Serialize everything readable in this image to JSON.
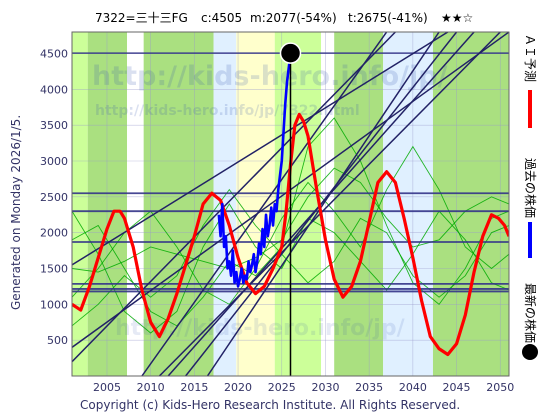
{
  "header": {
    "code_name": "7322=三十三FG",
    "current": "c:4505",
    "max_info": "m:2077(-54%)",
    "target_info": "t:2675(-41%)",
    "stars": "★★☆"
  },
  "side_left": {
    "generated": "Generated on Monday 2026/1/5."
  },
  "legend": [
    {
      "label": "ＡＩ予測",
      "color": "#ff0000",
      "kind": "line"
    },
    {
      "label": "過去の株価",
      "color": "#0000ff",
      "kind": "line"
    },
    {
      "label": "最新の株価",
      "color": "#000000",
      "kind": "dot"
    }
  ],
  "footer": {
    "copyright": "Copyright (c) Kids-Hero Research Institute. All Rights Reserved."
  },
  "watermark": {
    "url1": "http://kids-hero.info/jp/",
    "url2": "http://kids-hero.info/jp/7322.html"
  },
  "chart_data": {
    "type": "line",
    "xlim": [
      2001,
      2051
    ],
    "ylim": [
      0,
      4800
    ],
    "x_ticks": [
      2005,
      2010,
      2015,
      2020,
      2025,
      2030,
      2035,
      2040,
      2045,
      2050
    ],
    "y_ticks": [
      500,
      1000,
      1500,
      2000,
      2500,
      3000,
      3500,
      4000,
      4500
    ],
    "colors": {
      "background_green": "#ccff99",
      "band_dark_green": "#aae080",
      "band_white": "#ffffff",
      "band_light_blue": "#e0f0ff",
      "band_cream": "#ffffcc",
      "grid": "#9999cc",
      "hline": "#333388",
      "trend": "#222266",
      "thin_green": "#00aa00",
      "ai_red": "#ff0000",
      "past_blue": "#0000ff",
      "latest_dot": "#000000",
      "tick_text": "#333366"
    },
    "bands": [
      {
        "from": 2001,
        "to": 2002.8,
        "kind": "background_green"
      },
      {
        "from": 2002.8,
        "to": 2007.3,
        "kind": "band_dark_green"
      },
      {
        "from": 2007.3,
        "to": 2009.2,
        "kind": "band_white"
      },
      {
        "from": 2009.2,
        "to": 2017.2,
        "kind": "band_dark_green"
      },
      {
        "from": 2017.2,
        "to": 2019.8,
        "kind": "band_light_blue"
      },
      {
        "from": 2019.8,
        "to": 2024.2,
        "kind": "band_cream"
      },
      {
        "from": 2024.2,
        "to": 2029.5,
        "kind": "background_green"
      },
      {
        "from": 2029.5,
        "to": 2031.0,
        "kind": "band_white"
      },
      {
        "from": 2031.0,
        "to": 2036.6,
        "kind": "band_dark_green"
      },
      {
        "from": 2036.6,
        "to": 2042.3,
        "kind": "band_light_blue"
      },
      {
        "from": 2042.3,
        "to": 2051,
        "kind": "band_dark_green"
      }
    ],
    "horizontal_lines": [
      4505,
      2550,
      2300,
      1870,
      1285,
      1215,
      1180
    ],
    "trend_lines": [
      {
        "from": [
          2001,
          400
        ],
        "to": [
          2051,
          4800
        ]
      },
      {
        "from": [
          2011,
          0
        ],
        "to": [
          2050,
          4800
        ]
      },
      {
        "from": [
          2012,
          0
        ],
        "to": [
          2047,
          4800
        ]
      },
      {
        "from": [
          2014,
          0
        ],
        "to": [
          2045,
          4800
        ]
      },
      {
        "from": [
          2016.5,
          0
        ],
        "to": [
          2043,
          4800
        ]
      },
      {
        "from": [
          2001,
          1550
        ],
        "to": [
          2044,
          4800
        ]
      },
      {
        "from": [
          2001,
          200
        ],
        "to": [
          2038,
          4800
        ]
      },
      {
        "from": [
          2009,
          0
        ],
        "to": [
          2037,
          4800
        ]
      }
    ],
    "thin_lines": [
      [
        [
          2001,
          1500
        ],
        [
          2004,
          1450
        ],
        [
          2007,
          1600
        ],
        [
          2010,
          1800
        ],
        [
          2013,
          1700
        ],
        [
          2016,
          1600
        ],
        [
          2019,
          1500
        ],
        [
          2022,
          1650
        ],
        [
          2025,
          1900
        ],
        [
          2028,
          2500
        ],
        [
          2031,
          2900
        ],
        [
          2034,
          2700
        ],
        [
          2037,
          2200
        ],
        [
          2040,
          1800
        ],
        [
          2043,
          1900
        ],
        [
          2046,
          2300
        ],
        [
          2049,
          2500
        ],
        [
          2051,
          2400
        ]
      ],
      [
        [
          2001,
          1900
        ],
        [
          2004,
          2100
        ],
        [
          2007,
          1500
        ],
        [
          2010,
          900
        ],
        [
          2013,
          700
        ],
        [
          2016,
          1100
        ],
        [
          2019,
          1600
        ],
        [
          2022,
          1400
        ],
        [
          2025,
          1800
        ],
        [
          2028,
          3200
        ],
        [
          2031,
          3600
        ],
        [
          2034,
          3000
        ],
        [
          2037,
          2100
        ],
        [
          2040,
          1300
        ],
        [
          2043,
          1000
        ],
        [
          2046,
          1500
        ],
        [
          2049,
          2200
        ],
        [
          2051,
          2300
        ]
      ],
      [
        [
          2001,
          2300
        ],
        [
          2004,
          1700
        ],
        [
          2007,
          900
        ],
        [
          2010,
          600
        ],
        [
          2013,
          900
        ],
        [
          2016,
          1800
        ],
        [
          2019,
          2400
        ],
        [
          2022,
          1800
        ],
        [
          2025,
          1500
        ],
        [
          2028,
          2200
        ],
        [
          2031,
          2000
        ],
        [
          2034,
          1600
        ],
        [
          2037,
          1200
        ],
        [
          2040,
          1700
        ],
        [
          2043,
          2300
        ],
        [
          2046,
          1900
        ],
        [
          2049,
          1300
        ],
        [
          2051,
          1200
        ]
      ],
      [
        [
          2001,
          1100
        ],
        [
          2004,
          1500
        ],
        [
          2007,
          2000
        ],
        [
          2010,
          2300
        ],
        [
          2013,
          1800
        ],
        [
          2016,
          1200
        ],
        [
          2019,
          1000
        ],
        [
          2022,
          1500
        ],
        [
          2025,
          2200
        ],
        [
          2028,
          2700
        ],
        [
          2031,
          2300
        ],
        [
          2034,
          1800
        ],
        [
          2037,
          2600
        ],
        [
          2040,
          3200
        ],
        [
          2043,
          2600
        ],
        [
          2046,
          1800
        ],
        [
          2049,
          1500
        ],
        [
          2051,
          1700
        ]
      ],
      [
        [
          2001,
          700
        ],
        [
          2004,
          1000
        ],
        [
          2007,
          1400
        ],
        [
          2010,
          1100
        ],
        [
          2013,
          1400
        ],
        [
          2016,
          2100
        ],
        [
          2019,
          2600
        ],
        [
          2022,
          2100
        ],
        [
          2025,
          1700
        ],
        [
          2028,
          1300
        ],
        [
          2031,
          1600
        ],
        [
          2034,
          2200
        ],
        [
          2037,
          2000
        ],
        [
          2040,
          1400
        ],
        [
          2043,
          1100
        ],
        [
          2046,
          1400
        ],
        [
          2049,
          2000
        ],
        [
          2051,
          2100
        ]
      ]
    ],
    "series": [
      {
        "name": "ＡＩ予測",
        "color": "#ff0000",
        "x": [
          2001,
          2002,
          2003,
          2004,
          2005,
          2005.8,
          2006.5,
          2007,
          2008,
          2009,
          2010,
          2011,
          2012,
          2013,
          2014,
          2015,
          2016,
          2017,
          2018,
          2019,
          2020,
          2021,
          2022,
          2023,
          2024,
          2025,
          2025.5,
          2026,
          2026.5,
          2027,
          2027.5,
          2028,
          2029,
          2030,
          2031,
          2032,
          2033,
          2034,
          2035,
          2036,
          2037,
          2038,
          2039,
          2040,
          2041,
          2042,
          2043,
          2044,
          2045,
          2046,
          2047,
          2048,
          2049,
          2049.8,
          2050.5,
          2051
        ],
        "y": [
          1000,
          920,
          1250,
          1650,
          2050,
          2300,
          2300,
          2200,
          1800,
          1200,
          750,
          550,
          800,
          1150,
          1550,
          1950,
          2400,
          2550,
          2450,
          2100,
          1650,
          1300,
          1150,
          1250,
          1500,
          1800,
          2300,
          2950,
          3500,
          3650,
          3550,
          3350,
          2600,
          1900,
          1350,
          1100,
          1250,
          1600,
          2150,
          2700,
          2850,
          2700,
          2200,
          1650,
          1050,
          550,
          380,
          300,
          450,
          850,
          1450,
          1950,
          2250,
          2200,
          2100,
          1950
        ]
      },
      {
        "name": "過去の株価",
        "color": "#0000ff",
        "x": [
          2017.8,
          2018.0,
          2018.2,
          2018.4,
          2018.6,
          2018.8,
          2019.0,
          2019.2,
          2019.4,
          2019.6,
          2019.8,
          2020.0,
          2020.2,
          2020.4,
          2020.6,
          2020.8,
          2021.0,
          2021.2,
          2021.4,
          2021.6,
          2021.8,
          2022.0,
          2022.2,
          2022.4,
          2022.6,
          2022.8,
          2023.0,
          2023.2,
          2023.4,
          2023.6,
          2023.8,
          2024.0,
          2024.2,
          2024.4,
          2024.6,
          2024.8,
          2025.0,
          2025.2,
          2025.4,
          2025.6,
          2025.8,
          2026.0
        ],
        "y": [
          2250,
          1950,
          2400,
          1800,
          1950,
          1500,
          1600,
          1400,
          1750,
          1300,
          1450,
          1250,
          1350,
          1500,
          1300,
          1400,
          1350,
          1600,
          1450,
          1550,
          1700,
          1450,
          1600,
          1850,
          1700,
          2050,
          1800,
          2250,
          1950,
          2100,
          2350,
          2100,
          2400,
          2300,
          2600,
          2800,
          3000,
          3400,
          3800,
          4100,
          4300,
          4505
        ]
      }
    ],
    "latest": {
      "x": 2026,
      "y": 4505
    },
    "vertical_marker": 2026
  }
}
